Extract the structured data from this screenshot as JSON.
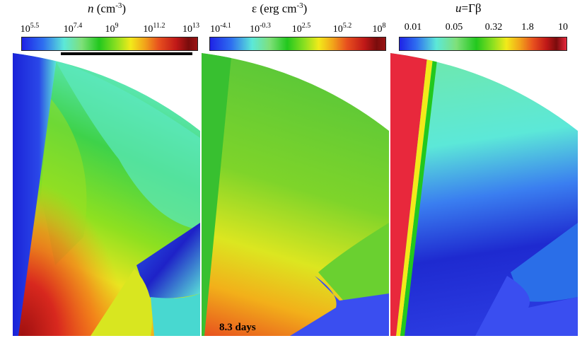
{
  "panels": [
    {
      "title_var": "n",
      "title_unit": "(cm",
      "title_exp": "-3",
      "title_close": ")",
      "ticks": [
        {
          "base": "10",
          "exp": "5.5"
        },
        {
          "base": "10",
          "exp": "7.4"
        },
        {
          "base": "10",
          "exp": "9"
        },
        {
          "base": "10",
          "exp": "11.2"
        },
        {
          "base": "10",
          "exp": "13"
        }
      ]
    },
    {
      "title_var": "ε",
      "title_unit": "(erg cm",
      "title_exp": "-3",
      "title_close": ")",
      "ticks": [
        {
          "base": "10",
          "exp": "-4.1"
        },
        {
          "base": "10",
          "exp": "-0.3"
        },
        {
          "base": "10",
          "exp": "2.5"
        },
        {
          "base": "10",
          "exp": "5.2"
        },
        {
          "base": "10",
          "exp": "8"
        }
      ]
    },
    {
      "title_var": "u",
      "title_rest": "=Γβ",
      "ticks": [
        {
          "base": "0.01",
          "exp": ""
        },
        {
          "base": "0.05",
          "exp": ""
        },
        {
          "base": "0.32",
          "exp": ""
        },
        {
          "base": "1.8",
          "exp": ""
        },
        {
          "base": "10",
          "exp": ""
        }
      ]
    }
  ],
  "time_label": "8.3 days",
  "colors": {
    "cmap_low": "#1e22e6",
    "cmap_mid_cyan": "#5ce8d8",
    "cmap_mid_green": "#22c81e",
    "cmap_mid_yellow": "#f2ea1a",
    "cmap_high_red": "#d8281e",
    "cmap_top": "#e8283c"
  }
}
